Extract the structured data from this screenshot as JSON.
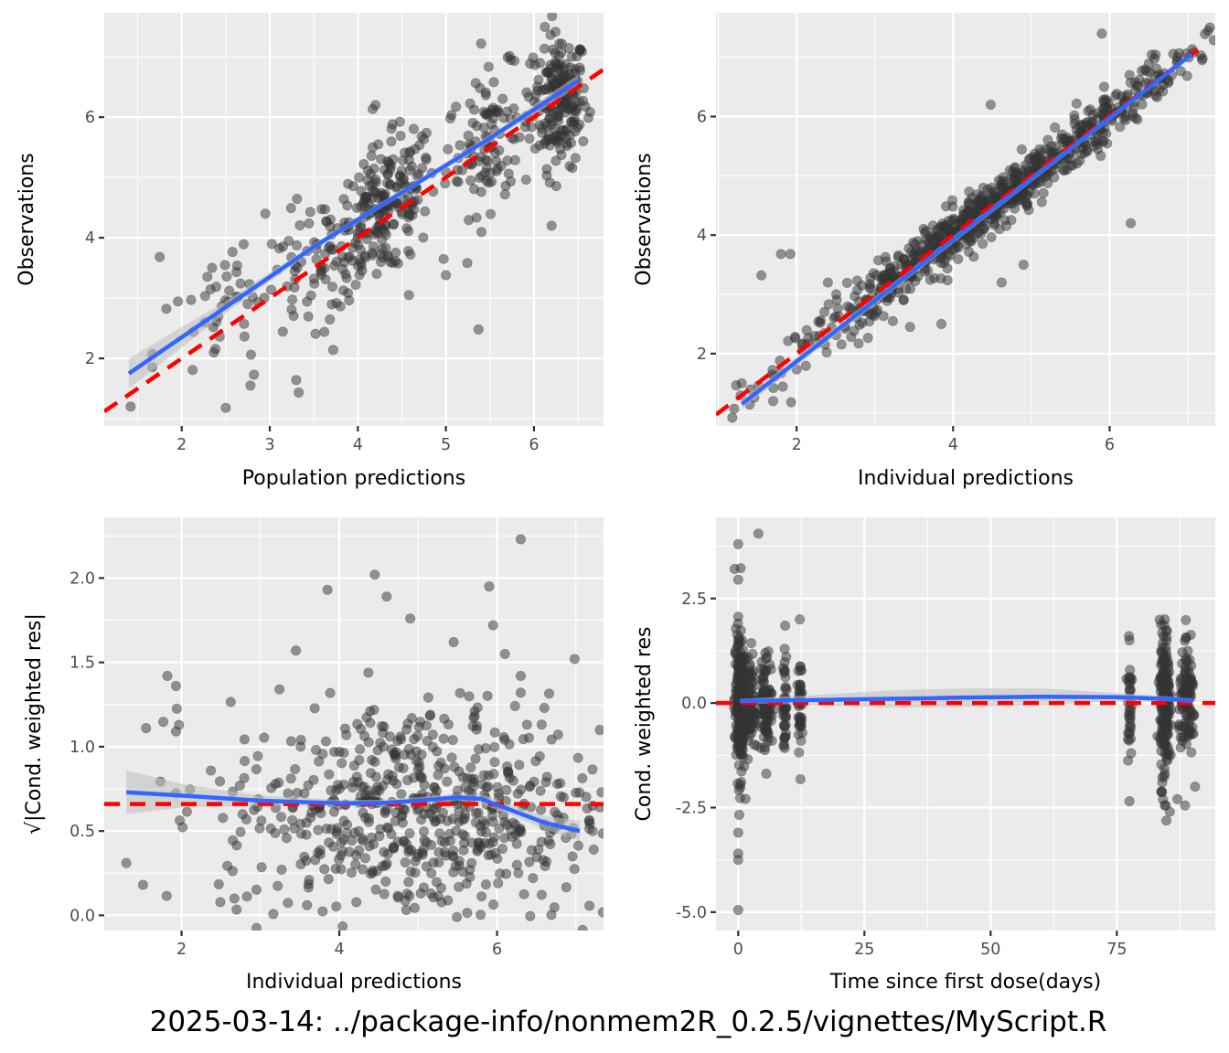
{
  "caption": "2025-03-14: ../package-info/nonmem2R_0.2.5/vignettes/MyScript.R",
  "colors": {
    "panel_bg": "#EBEBEB",
    "grid": "#FFFFFF",
    "points": "#333333",
    "smooth": "#3366FF",
    "ribbon": "#BEBEBE",
    "reference": "#FF0000",
    "tick_text": "#4D4D4D"
  },
  "chart_data": [
    {
      "id": "pred-vs-obs",
      "type": "scatter",
      "title": "",
      "xlabel": "Population predictions",
      "ylabel": "Observations",
      "xlim": [
        1.12,
        6.79
      ],
      "ylim": [
        0.88,
        7.73
      ],
      "xticks": [
        2,
        3,
        4,
        5,
        6
      ],
      "xtick_labels": [
        "2",
        "3",
        "4",
        "5",
        "6"
      ],
      "yticks": [
        2,
        4,
        6
      ],
      "ytick_labels": [
        "2",
        "4",
        "6"
      ],
      "grid": true,
      "reference_line": {
        "type": "identity",
        "style": "dashed",
        "from": [
          1.12,
          1.12
        ],
        "to": [
          6.79,
          6.79
        ]
      },
      "smooth": {
        "x": [
          1.4,
          2.5,
          3.5,
          4.5,
          5.5,
          6.5
        ],
        "y": [
          1.75,
          2.85,
          3.85,
          4.75,
          5.65,
          6.6
        ],
        "ci_halfwidth": [
          0.25,
          0.1,
          0.05,
          0.05,
          0.06,
          0.1
        ]
      },
      "clusters": [
        {
          "x": 6.3,
          "y": 6.3,
          "sx": 0.15,
          "sy": 0.55,
          "n": 190,
          "slope": 0
        },
        {
          "x": 5.5,
          "y": 5.6,
          "sx": 0.25,
          "sy": 0.55,
          "n": 110,
          "slope": 0.6
        },
        {
          "x": 4.3,
          "y": 4.45,
          "sx": 0.3,
          "sy": 0.55,
          "n": 210,
          "slope": 0.9
        },
        {
          "x": 3.5,
          "y": 3.6,
          "sx": 0.3,
          "sy": 0.5,
          "n": 60,
          "slope": 0.9
        },
        {
          "x": 2.5,
          "y": 2.8,
          "sx": 0.4,
          "sy": 0.55,
          "n": 45,
          "slope": 0.9
        }
      ],
      "points": [
        [
          1.42,
          1.2
        ],
        [
          2.5,
          1.18
        ],
        [
          1.75,
          3.68
        ],
        [
          3.3,
          1.64
        ],
        [
          5.37,
          2.48
        ],
        [
          6.2,
          4.2
        ],
        [
          4.2,
          6.2
        ],
        [
          5.4,
          7.22
        ],
        [
          2.95,
          4.4
        ],
        [
          3.72,
          2.14
        ],
        [
          2.82,
          1.73
        ],
        [
          2.78,
          1.55
        ],
        [
          5.0,
          3.38
        ],
        [
          4.58,
          3.05
        ]
      ]
    },
    {
      "id": "ipred-vs-obs",
      "type": "scatter",
      "title": "",
      "xlabel": "Individual predictions",
      "ylabel": "Observations",
      "xlim": [
        0.97,
        7.35
      ],
      "ylim": [
        0.78,
        7.75
      ],
      "xticks": [
        2,
        4,
        6
      ],
      "xtick_labels": [
        "2",
        "4",
        "6"
      ],
      "yticks": [
        2,
        4,
        6
      ],
      "ytick_labels": [
        "2",
        "4",
        "6"
      ],
      "grid": true,
      "reference_line": {
        "type": "identity",
        "style": "dashed",
        "from": [
          0.97,
          0.97
        ],
        "to": [
          7.15,
          7.15
        ]
      },
      "smooth": {
        "x": [
          1.3,
          7.05
        ],
        "y": [
          1.15,
          7.05
        ],
        "ci_halfwidth": [
          0.08,
          0.04
        ]
      },
      "clusters": [
        {
          "x": 4.5,
          "y": 4.5,
          "sx": 1.25,
          "sy": 0.22,
          "n": 820,
          "slope": 1.0
        }
      ],
      "points": [
        [
          1.3,
          1.5
        ],
        [
          1.55,
          3.32
        ],
        [
          1.8,
          3.68
        ],
        [
          1.92,
          3.68
        ],
        [
          1.7,
          1.2
        ],
        [
          1.93,
          1.18
        ],
        [
          4.48,
          6.2
        ],
        [
          6.27,
          4.2
        ],
        [
          5.9,
          7.4
        ],
        [
          4.62,
          3.2
        ],
        [
          4.9,
          3.5
        ],
        [
          3.85,
          2.5
        ],
        [
          3.45,
          2.45
        ],
        [
          3.23,
          2.55
        ],
        [
          2.4,
          3.2
        ]
      ]
    },
    {
      "id": "ipred-vs-abs-cwres",
      "type": "scatter",
      "title": "",
      "xlabel": "Individual predictions",
      "ylabel": "√|Cond. weighted res|",
      "xlim": [
        1.02,
        7.35
      ],
      "ylim": [
        -0.09,
        2.36
      ],
      "xticks": [
        2,
        4,
        6
      ],
      "xtick_labels": [
        "2",
        "4",
        "6"
      ],
      "yticks": [
        0.0,
        0.5,
        1.0,
        1.5,
        2.0
      ],
      "ytick_labels": [
        "0.0",
        "0.5",
        "1.0",
        "1.5",
        "2.0"
      ],
      "grid": true,
      "reference_line": {
        "type": "horizontal",
        "style": "dashed",
        "y": 0.66
      },
      "smooth": {
        "x": [
          1.3,
          2.0,
          3.0,
          4.0,
          4.5,
          5.0,
          5.5,
          5.8,
          6.2,
          6.6,
          7.05
        ],
        "y": [
          0.73,
          0.71,
          0.68,
          0.665,
          0.665,
          0.68,
          0.7,
          0.69,
          0.62,
          0.55,
          0.5
        ],
        "ci_halfwidth": [
          0.13,
          0.07,
          0.03,
          0.02,
          0.02,
          0.02,
          0.02,
          0.03,
          0.03,
          0.04,
          0.06
        ]
      },
      "clusters": [
        {
          "x": 5.0,
          "y": 0.62,
          "sx": 1.25,
          "sy": 0.33,
          "n": 640,
          "slope": 0
        }
      ],
      "points": [
        [
          1.3,
          0.31
        ],
        [
          1.55,
          1.11
        ],
        [
          1.82,
          1.42
        ],
        [
          1.93,
          1.36
        ],
        [
          1.93,
          1.09
        ],
        [
          6.3,
          2.23
        ],
        [
          4.45,
          2.02
        ],
        [
          3.85,
          1.93
        ],
        [
          5.9,
          1.95
        ],
        [
          4.6,
          1.89
        ],
        [
          4.9,
          1.76
        ],
        [
          5.95,
          1.72
        ],
        [
          3.45,
          1.57
        ],
        [
          5.45,
          1.62
        ],
        [
          6.1,
          1.55
        ],
        [
          6.3,
          1.42
        ],
        [
          6.3,
          1.32
        ],
        [
          6.6,
          1.23
        ]
      ]
    },
    {
      "id": "time-vs-cwres",
      "type": "scatter",
      "title": "",
      "xlabel": "Time since first dose(days)",
      "ylabel": "Cond. weighted res",
      "xlim": [
        -4.4,
        94.5
      ],
      "ylim": [
        -5.44,
        4.44
      ],
      "xticks": [
        0,
        25,
        50,
        75
      ],
      "xtick_labels": [
        "0",
        "25",
        "50",
        "75"
      ],
      "yticks": [
        -5.0,
        -2.5,
        0.0,
        2.5
      ],
      "ytick_labels": [
        "-5.0",
        "-2.5",
        "0.0",
        "2.5"
      ],
      "grid": true,
      "reference_line": {
        "type": "horizontal",
        "style": "dashed",
        "y": 0.0
      },
      "smooth": {
        "x": [
          0.3,
          15,
          30,
          45,
          60,
          75,
          85,
          90
        ],
        "y": [
          0.05,
          0.07,
          0.1,
          0.13,
          0.15,
          0.14,
          0.1,
          0.05
        ],
        "ci_halfwidth": [
          0.05,
          0.12,
          0.2,
          0.22,
          0.2,
          0.1,
          0.06,
          0.06
        ]
      },
      "clusters": [
        {
          "x": 0.3,
          "y": 0.0,
          "sx": 0.5,
          "sy": 0.9,
          "n": 220,
          "slope": 0
        },
        {
          "x": 2.2,
          "y": 0.0,
          "sx": 0.6,
          "sy": 0.6,
          "n": 90,
          "slope": 0
        },
        {
          "x": 5.5,
          "y": 0.0,
          "sx": 0.7,
          "sy": 0.55,
          "n": 90,
          "slope": 0
        },
        {
          "x": 9.3,
          "y": 0.0,
          "sx": 0.2,
          "sy": 0.6,
          "n": 40,
          "slope": 0
        },
        {
          "x": 12.2,
          "y": 0.0,
          "sx": 0.2,
          "sy": 0.6,
          "n": 40,
          "slope": 0
        },
        {
          "x": 77.5,
          "y": 0.0,
          "sx": 0.2,
          "sy": 0.65,
          "n": 35,
          "slope": 0
        },
        {
          "x": 84.5,
          "y": 0.0,
          "sx": 0.5,
          "sy": 0.9,
          "n": 200,
          "slope": 0
        },
        {
          "x": 89.0,
          "y": 0.0,
          "sx": 0.8,
          "sy": 0.6,
          "n": 110,
          "slope": 0
        }
      ],
      "points": [
        [
          0.0,
          3.8
        ],
        [
          4.0,
          4.05
        ],
        [
          0.0,
          2.95
        ],
        [
          0.0,
          -4.95
        ],
        [
          0.0,
          -3.1
        ],
        [
          0.0,
          -3.6
        ],
        [
          0.0,
          -3.75
        ],
        [
          12.2,
          2.0
        ],
        [
          9.3,
          1.85
        ],
        [
          77.5,
          1.5
        ],
        [
          77.5,
          -2.35
        ],
        [
          84.5,
          2.0
        ],
        [
          84.5,
          -2.45
        ],
        [
          85.5,
          -2.6
        ],
        [
          87.0,
          -2.3
        ],
        [
          88.5,
          -2.45
        ],
        [
          90.5,
          -2.0
        ],
        [
          84.0,
          -1.9
        ]
      ]
    }
  ]
}
